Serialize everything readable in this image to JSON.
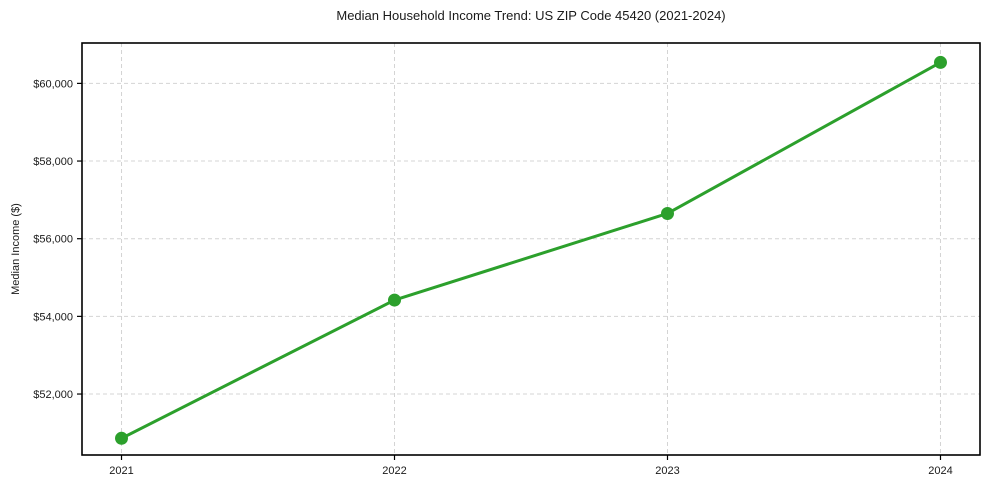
{
  "chart_data": {
    "type": "line",
    "title": "Median Household Income Trend: US ZIP Code 45420 (2021-2024)",
    "xlabel": "",
    "ylabel": "Median Income ($)",
    "categories": [
      "2021",
      "2022",
      "2023",
      "2024"
    ],
    "values": [
      50860,
      54420,
      56650,
      60540
    ],
    "yticks": [
      52000,
      54000,
      56000,
      58000,
      60000
    ],
    "ytick_labels": [
      "$52,000",
      "$54,000",
      "$56,000",
      "$58,000",
      "$60,000"
    ],
    "ylim": [
      50430,
      61040
    ],
    "grid": true,
    "grid_style": "dashed",
    "legend": false,
    "marker": "circle",
    "line_color": "#2ca02c",
    "grid_color": "#d4d4d4",
    "spine_color": "#000000",
    "text_color": "#1a1a1a",
    "background": "#ffffff"
  }
}
